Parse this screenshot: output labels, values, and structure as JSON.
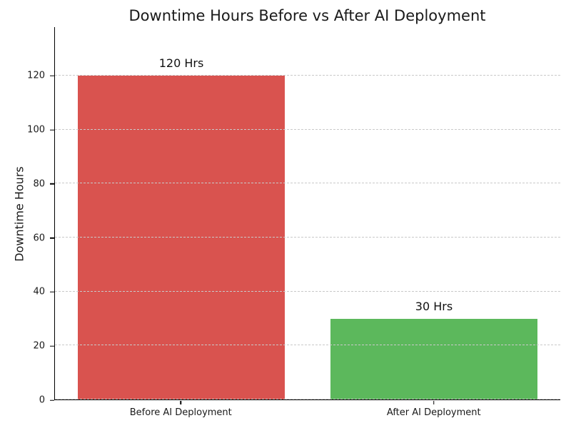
{
  "chart_data": {
    "type": "bar",
    "title": "Downtime Hours Before vs After AI Deployment",
    "xlabel": "",
    "ylabel": "Downtime Hours",
    "categories": [
      "Before AI Deployment",
      "After AI Deployment"
    ],
    "values": [
      120,
      30
    ],
    "value_labels": [
      "120 Hrs",
      "30 Hrs"
    ],
    "bar_colors": [
      "#d9534f",
      "#5cb85c"
    ],
    "ylim": [
      0,
      138
    ],
    "yticks": [
      0,
      20,
      40,
      60,
      80,
      100,
      120
    ],
    "grid": "horizontal-dashed",
    "grid_color": "#c9c9c9",
    "legend_position": "none"
  },
  "style": {
    "background": "#ffffff",
    "title_color": "#1a1a1a",
    "text_color": "#1a1a1a",
    "spine_color": "#000000"
  }
}
